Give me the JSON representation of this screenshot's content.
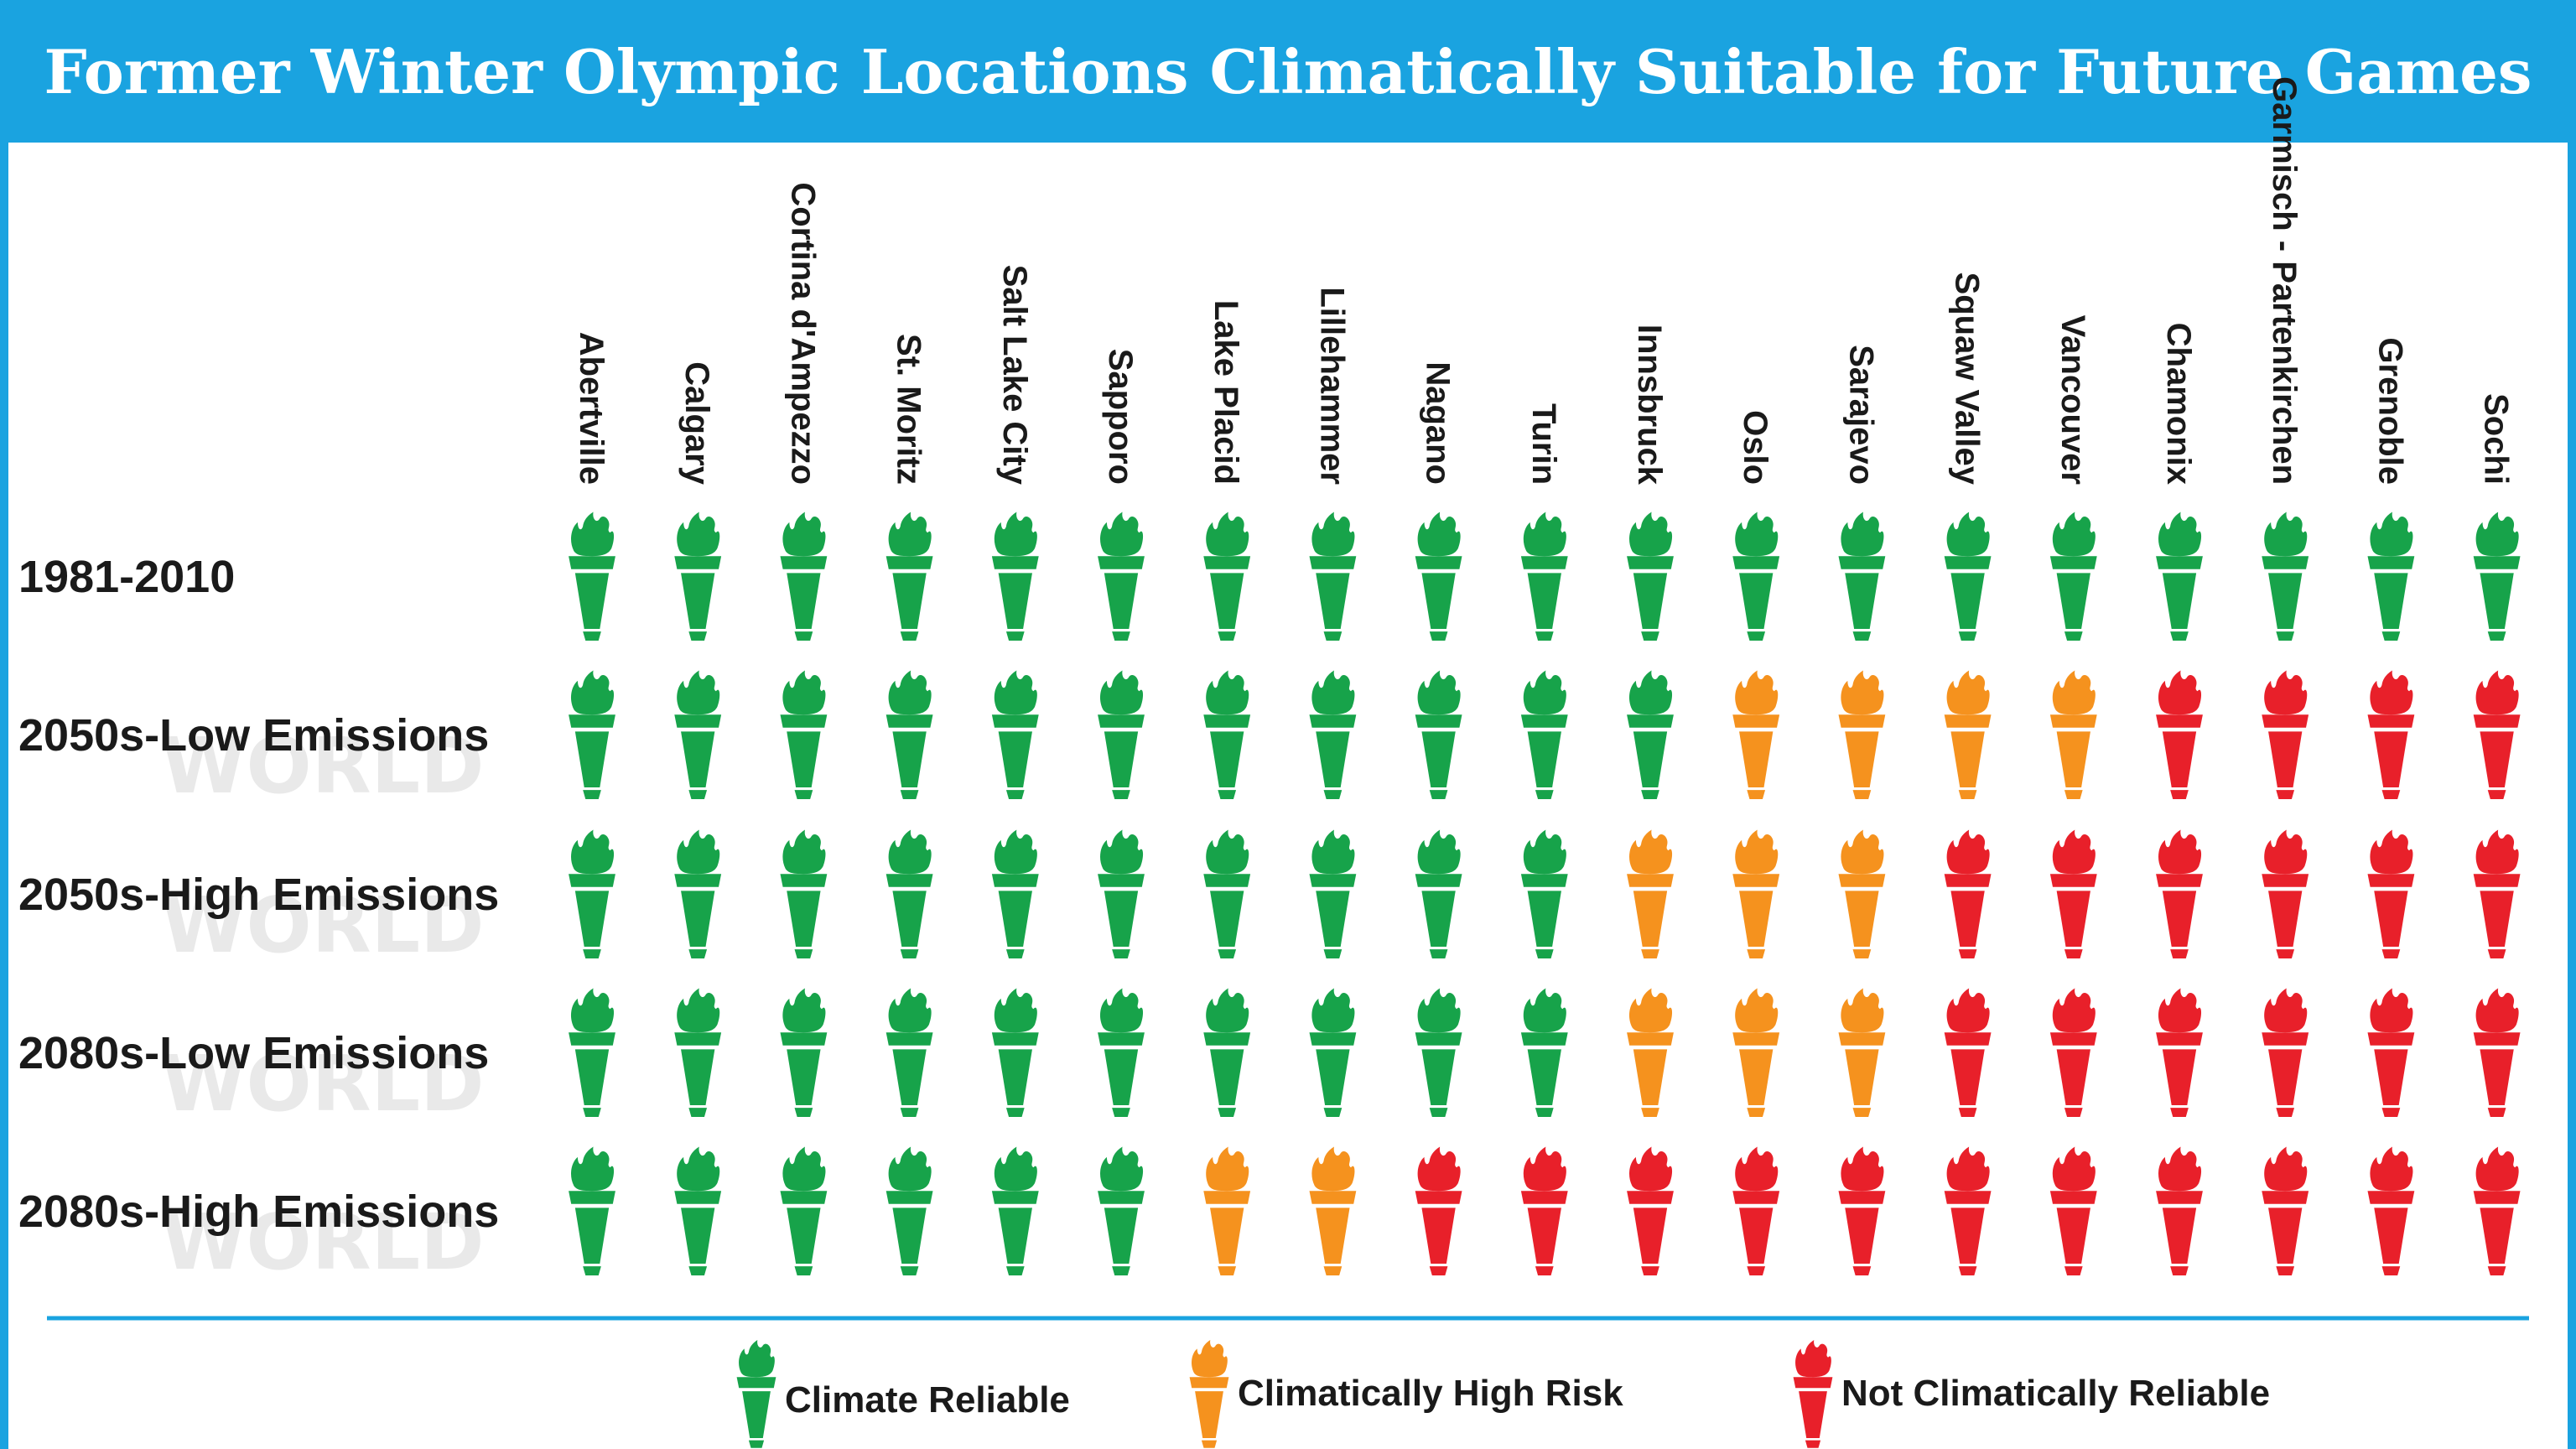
{
  "title": "Former Winter Olympic Locations Climatically Suitable for Future Games",
  "watermark_text": "WORLD",
  "colors": {
    "accent": "#1aa3e0",
    "reliable": "#17a34a",
    "high_risk": "#f5921e",
    "not_reliable": "#e8202a"
  },
  "icon": "torch-icon",
  "chart_data": {
    "type": "table",
    "categories": [
      "Abertville",
      "Calgary",
      "Cortina d'Ampezzo",
      "St. Moritz",
      "Salt Lake City",
      "Sapporo",
      "Lake Placid",
      "Lillehammer",
      "Nagano",
      "Turin",
      "Innsbruck",
      "Oslo",
      "Sarajevo",
      "Squaw Valley",
      "Vancouver",
      "Chamonix",
      "Garmisch - Partenkirchen",
      "Grenoble",
      "Sochi"
    ],
    "series": [
      {
        "name": "1981-2010",
        "values": [
          "R",
          "R",
          "R",
          "R",
          "R",
          "R",
          "R",
          "R",
          "R",
          "R",
          "R",
          "R",
          "R",
          "R",
          "R",
          "R",
          "R",
          "R",
          "R"
        ]
      },
      {
        "name": "2050s-Low Emissions",
        "values": [
          "R",
          "R",
          "R",
          "R",
          "R",
          "R",
          "R",
          "R",
          "R",
          "R",
          "R",
          "H",
          "H",
          "H",
          "H",
          "N",
          "N",
          "N",
          "N"
        ]
      },
      {
        "name": "2050s-High Emissions",
        "values": [
          "R",
          "R",
          "R",
          "R",
          "R",
          "R",
          "R",
          "R",
          "R",
          "R",
          "H",
          "H",
          "H",
          "N",
          "N",
          "N",
          "N",
          "N",
          "N"
        ]
      },
      {
        "name": "2080s-Low Emissions",
        "values": [
          "R",
          "R",
          "R",
          "R",
          "R",
          "R",
          "R",
          "R",
          "R",
          "R",
          "H",
          "H",
          "H",
          "N",
          "N",
          "N",
          "N",
          "N",
          "N"
        ]
      },
      {
        "name": "2080s-High Emissions",
        "values": [
          "R",
          "R",
          "R",
          "R",
          "R",
          "R",
          "H",
          "H",
          "N",
          "N",
          "N",
          "N",
          "N",
          "N",
          "N",
          "N",
          "N",
          "N",
          "N"
        ]
      }
    ],
    "legend": {
      "position": "bottom",
      "entries": [
        {
          "code": "R",
          "label": "Climate Reliable",
          "color": "#17a34a"
        },
        {
          "code": "H",
          "label": "Climatically High Risk",
          "color": "#f5921e"
        },
        {
          "code": "N",
          "label": "Not Climatically Reliable",
          "color": "#e8202a"
        }
      ]
    }
  }
}
